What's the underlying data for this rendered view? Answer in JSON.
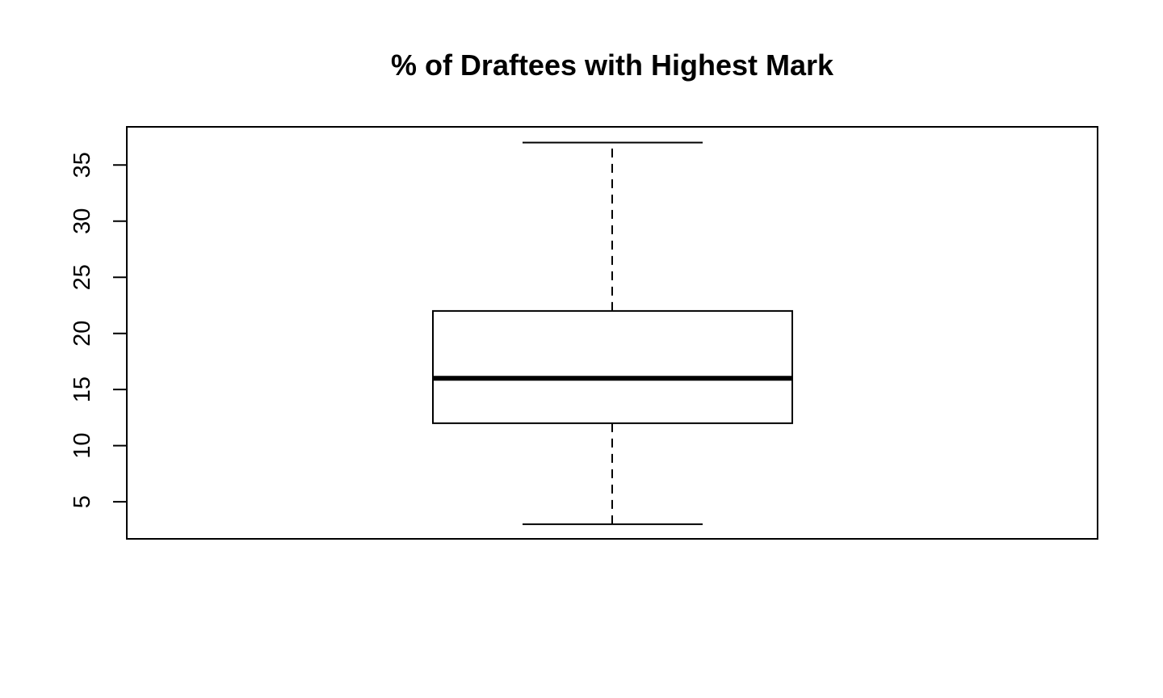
{
  "chart_data": {
    "type": "boxplot",
    "title": "% of Draftees with Highest Mark",
    "xlabel": "",
    "ylabel": "",
    "ylim": [
      1.7,
      38.4
    ],
    "yticks": [
      5,
      10,
      15,
      20,
      25,
      30,
      35
    ],
    "ytick_labels": [
      "5",
      "10",
      "15",
      "20",
      "25",
      "30",
      "35"
    ],
    "grid": false,
    "legend": "none",
    "box": {
      "min": 3,
      "q1": 12,
      "median": 16,
      "q3": 22,
      "max": 37
    },
    "colors": {
      "stroke": "#000000",
      "fill": "#ffffff"
    }
  }
}
